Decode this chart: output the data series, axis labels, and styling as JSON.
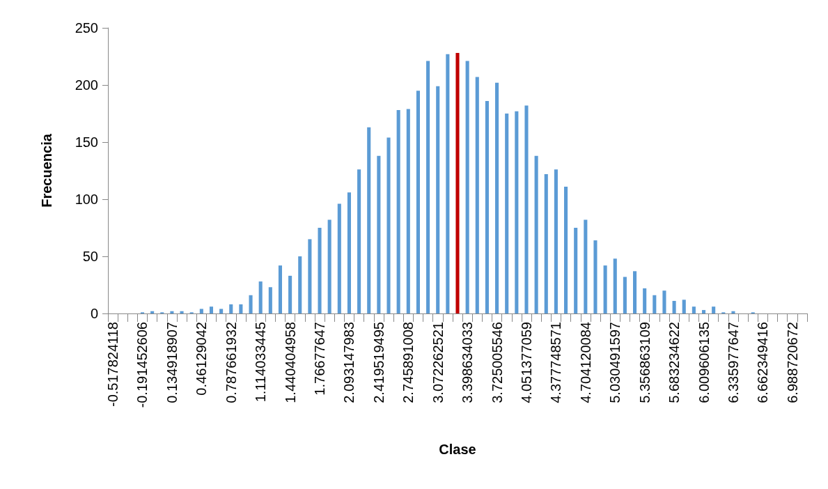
{
  "chart_data": {
    "type": "bar",
    "xlabel": "Clase",
    "ylabel": "Frecuencia",
    "categories": [
      "-0.517824118",
      null,
      null,
      "-0.191452606",
      null,
      null,
      "0.134918907",
      null,
      null,
      "0.46129042",
      null,
      null,
      "0.787661932",
      null,
      null,
      "1.114033445",
      null,
      null,
      "1.440404958",
      null,
      null,
      "1.76677647",
      null,
      null,
      "2.093147983",
      null,
      null,
      "2.419519495",
      null,
      null,
      "2.745891008",
      null,
      null,
      "3.072262521",
      null,
      null,
      "3.398634033",
      null,
      null,
      "3.725005546",
      null,
      null,
      "4.051377059",
      null,
      null,
      "4.377748571",
      null,
      null,
      "4.704120084",
      null,
      null,
      "5.030491597",
      null,
      null,
      "5.356863109",
      null,
      null,
      "5.683234622",
      null,
      null,
      "6.009606135",
      null,
      null,
      "6.335977647",
      null,
      null,
      "6.662349416",
      null,
      null,
      "6.988720672",
      null
    ],
    "values": [
      0,
      0,
      0,
      1,
      2,
      1,
      2,
      2,
      1,
      4,
      6,
      4,
      8,
      8,
      16,
      28,
      23,
      42,
      33,
      50,
      65,
      75,
      82,
      96,
      106,
      126,
      163,
      138,
      154,
      178,
      179,
      195,
      221,
      199,
      227,
      228,
      221,
      207,
      186,
      202,
      175,
      177,
      182,
      138,
      122,
      126,
      111,
      75,
      82,
      64,
      42,
      48,
      32,
      37,
      22,
      16,
      20,
      11,
      12,
      6,
      3,
      6,
      1,
      2,
      0,
      1,
      0,
      0,
      0,
      0,
      0
    ],
    "colors": [
      "#5b9bd5",
      "#5b9bd5",
      "#5b9bd5",
      "#5b9bd5",
      "#5b9bd5",
      "#5b9bd5",
      "#5b9bd5",
      "#5b9bd5",
      "#5b9bd5",
      "#5b9bd5",
      "#5b9bd5",
      "#5b9bd5",
      "#5b9bd5",
      "#5b9bd5",
      "#5b9bd5",
      "#5b9bd5",
      "#5b9bd5",
      "#5b9bd5",
      "#5b9bd5",
      "#5b9bd5",
      "#5b9bd5",
      "#5b9bd5",
      "#5b9bd5",
      "#5b9bd5",
      "#5b9bd5",
      "#5b9bd5",
      "#5b9bd5",
      "#5b9bd5",
      "#5b9bd5",
      "#5b9bd5",
      "#5b9bd5",
      "#5b9bd5",
      "#5b9bd5",
      "#5b9bd5",
      "#5b9bd5",
      "#c00000",
      "#5b9bd5",
      "#5b9bd5",
      "#5b9bd5",
      "#5b9bd5",
      "#5b9bd5",
      "#5b9bd5",
      "#5b9bd5",
      "#5b9bd5",
      "#5b9bd5",
      "#5b9bd5",
      "#5b9bd5",
      "#5b9bd5",
      "#5b9bd5",
      "#5b9bd5",
      "#5b9bd5",
      "#5b9bd5",
      "#5b9bd5",
      "#5b9bd5",
      "#5b9bd5",
      "#5b9bd5",
      "#5b9bd5",
      "#5b9bd5",
      "#5b9bd5",
      "#5b9bd5",
      "#5b9bd5",
      "#5b9bd5",
      "#5b9bd5",
      "#5b9bd5",
      "#5b9bd5",
      "#5b9bd5",
      "#5b9bd5",
      "#5b9bd5",
      "#5b9bd5",
      "#5b9bd5",
      "#5b9bd5"
    ],
    "ylim": [
      0,
      250
    ],
    "yticks": [
      0,
      50,
      100,
      150,
      200,
      250
    ],
    "grid": false
  }
}
